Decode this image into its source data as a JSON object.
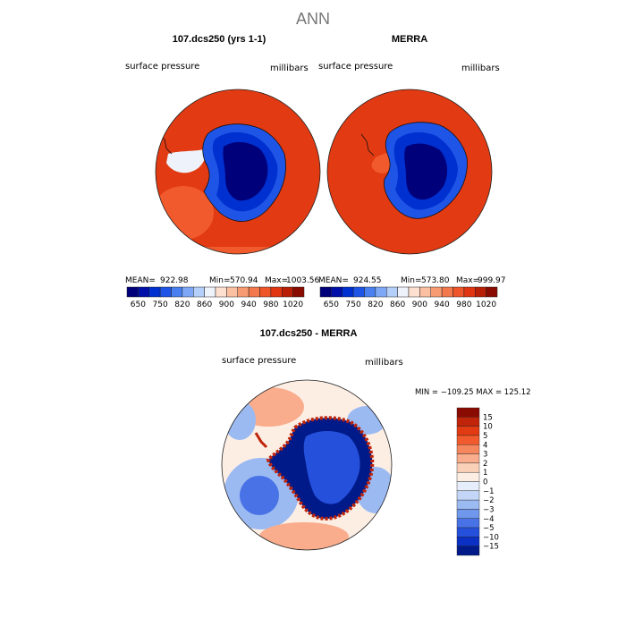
{
  "figure": {
    "title": "ANN",
    "panels": [
      {
        "id": "model",
        "title": "107.dcs250 (yrs 1-1)",
        "variable": "surface pressure",
        "units": "millibars",
        "stats": {
          "mean_label": "MEAN=",
          "mean": "922.98",
          "min_label": "Min=",
          "min": "570.94",
          "max_label": "Max=",
          "max": "1003.56"
        }
      },
      {
        "id": "obs",
        "title": "MERRA",
        "variable": "surface pressure",
        "units": "millibars",
        "stats": {
          "mean_label": "MEAN=",
          "mean": "924.55",
          "min_label": "Min=",
          "min": "573.80",
          "max_label": "Max=",
          "max": "999.97"
        }
      },
      {
        "id": "diff",
        "title": "107.dcs250 - MERRA",
        "variable": "surface pressure",
        "units": "millibars",
        "stats_text": "MIN = −109.25 MAX = 125.12"
      }
    ],
    "colorbar_abs": {
      "colors": [
        "#00007a",
        "#0010a8",
        "#0030d0",
        "#1f55e6",
        "#4a7ff0",
        "#7ea8f6",
        "#b4cff9",
        "#eef2fb",
        "#fde0cf",
        "#fbc0a2",
        "#f79b73",
        "#f3784c",
        "#ee5528",
        "#e03510",
        "#b81f06",
        "#8a0b02"
      ],
      "tick_labels": [
        "650",
        "750",
        "820",
        "860",
        "900",
        "940",
        "980",
        "1020"
      ]
    },
    "colorbar_diff": {
      "colors": [
        "#8a0b02",
        "#c0240a",
        "#e23a12",
        "#f05a2c",
        "#f6865e",
        "#f9ad8d",
        "#fbd0b8",
        "#fdeee4",
        "#e6eefb",
        "#c3d6f7",
        "#9bbaf2",
        "#6f97ec",
        "#4872e6",
        "#2550dc",
        "#0a30c4",
        "#001a8a"
      ],
      "tick_labels": [
        "15",
        "10",
        "5",
        "4",
        "3",
        "2",
        "1",
        "0",
        "−1",
        "−2",
        "−3",
        "−4",
        "−5",
        "−10",
        "−15"
      ]
    },
    "map_colors": {
      "ocean_high": "#e23a12",
      "ocean_edge": "#f05a2c",
      "ice_outer": "#1f55e6",
      "ice_mid": "#0030d0",
      "ice_core": "#00007a",
      "coast_white": "#eef2fb",
      "diff_bg": "#fdeee4",
      "diff_blue": "#9bbaf2",
      "diff_blue_deep": "#4872e6",
      "diff_red": "#f9ad8d",
      "diff_edge_red": "#c0240a"
    }
  }
}
